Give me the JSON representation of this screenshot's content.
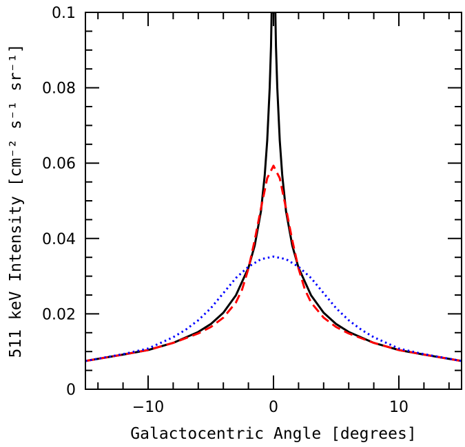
{
  "chart_data": {
    "type": "line",
    "title": "",
    "xlabel": "Galactocentric Angle [degrees]",
    "ylabel": "511 keV Intensity [cm⁻² s⁻¹ sr⁻¹]",
    "xlim": [
      -15,
      15
    ],
    "ylim": [
      0,
      0.1
    ],
    "x_ticks": [
      -10,
      0,
      10
    ],
    "x_tick_labels": [
      "−10",
      "0",
      "10"
    ],
    "y_ticks": [
      0,
      0.02,
      0.04,
      0.06,
      0.08,
      0.1
    ],
    "y_tick_labels": [
      "0",
      "0.02",
      "0.04",
      "0.06",
      "0.08",
      "0.1"
    ],
    "grid": false,
    "legend": "none",
    "series": [
      {
        "style": "solid",
        "color": "#000000",
        "x": [
          -15,
          -12,
          -10,
          -8,
          -6,
          -5,
          -4,
          -3,
          -2,
          -1.5,
          -1,
          -0.7,
          -0.5,
          -0.3,
          -0.2,
          -0.15,
          0.15,
          0.2,
          0.3,
          0.5,
          0.7,
          1,
          1.5,
          2,
          3,
          4,
          5,
          6,
          8,
          10,
          12,
          15
        ],
        "y": [
          0.0075,
          0.0092,
          0.0104,
          0.0123,
          0.0152,
          0.0173,
          0.0203,
          0.0249,
          0.0322,
          0.0381,
          0.0472,
          0.0568,
          0.066,
          0.08,
          0.091,
          0.1,
          0.1,
          0.091,
          0.08,
          0.066,
          0.0568,
          0.0472,
          0.0381,
          0.0322,
          0.0249,
          0.0203,
          0.0173,
          0.0152,
          0.0123,
          0.0104,
          0.0092,
          0.0075
        ]
      },
      {
        "style": "dashed",
        "color": "#ff0000",
        "x": [
          -15,
          -12,
          -10,
          -8,
          -6,
          -5,
          -4,
          -3,
          -2.5,
          -2,
          -1.5,
          -1,
          -0.5,
          0,
          0.5,
          1,
          1.5,
          2,
          2.5,
          3,
          4,
          5,
          6,
          8,
          10,
          12,
          15
        ],
        "y": [
          0.0075,
          0.0092,
          0.0104,
          0.0123,
          0.0148,
          0.0165,
          0.019,
          0.023,
          0.0265,
          0.032,
          0.0395,
          0.048,
          0.056,
          0.0593,
          0.056,
          0.048,
          0.0395,
          0.032,
          0.0265,
          0.023,
          0.019,
          0.0165,
          0.0148,
          0.0123,
          0.0104,
          0.0092,
          0.0075
        ]
      },
      {
        "style": "dotted",
        "color": "#0000ff",
        "x": [
          -15,
          -12,
          -10,
          -8,
          -7,
          -6,
          -5,
          -4,
          -3,
          -2,
          -1,
          0,
          1,
          2,
          3,
          4,
          5,
          6,
          7,
          8,
          10,
          12,
          15
        ],
        "y": [
          0.0075,
          0.0093,
          0.0108,
          0.0138,
          0.0158,
          0.0183,
          0.0215,
          0.0255,
          0.0295,
          0.0325,
          0.0345,
          0.0352,
          0.0345,
          0.0325,
          0.0295,
          0.0255,
          0.0215,
          0.0183,
          0.0158,
          0.0138,
          0.0108,
          0.0093,
          0.0075
        ]
      }
    ]
  }
}
